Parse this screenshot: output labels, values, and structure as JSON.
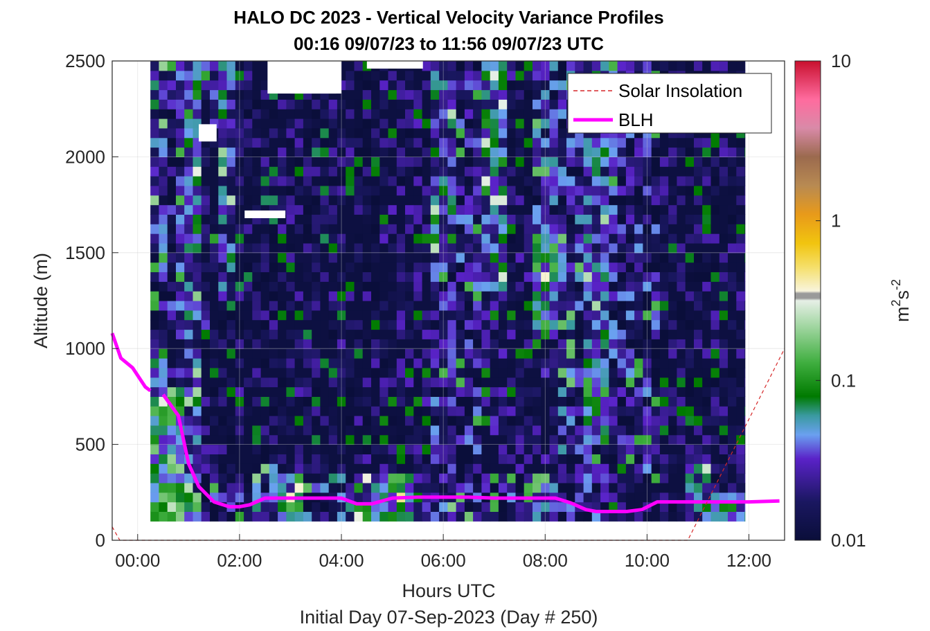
{
  "chart_data": {
    "type": "heatmap",
    "title": "HALO DC 2023 - Vertical Velocity Variance Profiles",
    "subtitle": "00:16 09/07/23 to 11:56 09/07/23  UTC",
    "xlabel": "Hours UTC",
    "xlabel2": "Initial Day 07-Sep-2023 (Day # 250)",
    "ylabel": "Altitude (m)",
    "xlim": [
      -0.5,
      12.7
    ],
    "ylim": [
      0,
      2500
    ],
    "x_ticks": [
      0,
      2,
      4,
      6,
      8,
      10,
      12
    ],
    "x_tick_labels": [
      "00:00",
      "02:00",
      "04:00",
      "06:00",
      "08:00",
      "10:00",
      "12:00"
    ],
    "y_ticks": [
      0,
      500,
      1000,
      1500,
      2000,
      2500
    ],
    "y_tick_labels": [
      "0",
      "500",
      "1000",
      "1500",
      "2000",
      "2500"
    ],
    "grid": true,
    "colorbar": {
      "scale": "log",
      "range": [
        0.01,
        10
      ],
      "ticks": [
        0.01,
        0.1,
        1,
        10
      ],
      "tick_labels": [
        "0.01",
        "0.1",
        "1",
        "10"
      ],
      "label_base": "m",
      "label_exp1": "2",
      "label_mid": "s",
      "label_exp2": "-2"
    },
    "legend": {
      "placement": "top-right",
      "entries": [
        {
          "label": "Solar Insolation",
          "color": "#d62728",
          "style": "dashed"
        },
        {
          "label": "BLH",
          "color": "#ff00ff",
          "style": "solid"
        }
      ]
    },
    "heatmap": {
      "x_start": 0.25,
      "x_end": 11.92,
      "dx": 0.1667,
      "y_start": 100,
      "y_end": 2500,
      "dy": 50,
      "columns": [
        {
          "t": 0.33,
          "top": 2500,
          "profile": [
            [
              100,
              250,
              0.1
            ],
            [
              250,
              700,
              0.08
            ],
            [
              700,
              1000,
              0.05
            ],
            [
              1000,
              1600,
              0.02
            ],
            [
              1600,
              2500,
              0.03
            ]
          ]
        },
        {
          "t": 0.67,
          "top": 2500,
          "profile": [
            [
              100,
              300,
              0.12
            ],
            [
              300,
              800,
              0.09
            ],
            [
              800,
              1200,
              0.015
            ],
            [
              1200,
              2500,
              0.02
            ]
          ]
        },
        {
          "t": 1.0,
          "top": 2500,
          "profile": [
            [
              100,
              250,
              0.09
            ],
            [
              250,
              900,
              0.035
            ],
            [
              900,
              1600,
              0.03
            ],
            [
              1600,
              2500,
              0.05
            ]
          ]
        },
        {
          "t": 1.33,
          "top": 2500,
          "profile": [
            [
              100,
              300,
              0.02
            ],
            [
              300,
              1100,
              0.012
            ],
            [
              1100,
              2500,
              0.018
            ]
          ]
        },
        {
          "t": 1.67,
          "top": 2500,
          "profile": [
            [
              100,
              300,
              0.02
            ],
            [
              300,
              1200,
              0.012
            ],
            [
              1200,
              2500,
              0.035
            ]
          ]
        },
        {
          "t": 2.0,
          "top": 2500,
          "profile": [
            [
              100,
              300,
              0.018
            ],
            [
              300,
              1100,
              0.013
            ],
            [
              1100,
              2500,
              0.011
            ]
          ]
        },
        {
          "t": 2.5,
          "top": 2500,
          "profile": [
            [
              100,
              400,
              0.03
            ],
            [
              400,
              2500,
              0.011
            ]
          ]
        },
        {
          "t": 3.0,
          "top": 2500,
          "profile": [
            [
              100,
              350,
              0.06
            ],
            [
              350,
              2500,
              0.012
            ]
          ]
        },
        {
          "t": 3.5,
          "top": 2500,
          "profile": [
            [
              100,
              300,
              0.025
            ],
            [
              300,
              2500,
              0.011
            ]
          ]
        },
        {
          "t": 4.0,
          "top": 2500,
          "profile": [
            [
              100,
              350,
              0.03
            ],
            [
              350,
              2500,
              0.012
            ]
          ]
        },
        {
          "t": 4.5,
          "top": 2500,
          "profile": [
            [
              100,
              350,
              0.05
            ],
            [
              350,
              2500,
              0.012
            ]
          ]
        },
        {
          "t": 5.0,
          "top": 2500,
          "profile": [
            [
              100,
              350,
              0.07
            ],
            [
              350,
              2500,
              0.013
            ]
          ]
        },
        {
          "t": 5.5,
          "top": 2500,
          "profile": [
            [
              100,
              350,
              0.04
            ],
            [
              350,
              2500,
              0.013
            ]
          ]
        },
        {
          "t": 6.0,
          "top": 2500,
          "profile": [
            [
              100,
              350,
              0.03
            ],
            [
              350,
              1500,
              0.02
            ],
            [
              1500,
              2500,
              0.04
            ]
          ]
        },
        {
          "t": 6.5,
          "top": 2500,
          "profile": [
            [
              100,
              350,
              0.025
            ],
            [
              350,
              2500,
              0.02
            ]
          ]
        },
        {
          "t": 7.0,
          "top": 2500,
          "profile": [
            [
              100,
              350,
              0.02
            ],
            [
              350,
              1300,
              0.014
            ],
            [
              1300,
              2500,
              0.045
            ]
          ]
        },
        {
          "t": 7.5,
          "top": 2500,
          "profile": [
            [
              100,
              350,
              0.02
            ],
            [
              350,
              2500,
              0.013
            ]
          ]
        },
        {
          "t": 8.0,
          "top": 2500,
          "profile": [
            [
              100,
              350,
              0.025
            ],
            [
              350,
              1100,
              0.015
            ],
            [
              1100,
              1600,
              0.06
            ],
            [
              1600,
              2500,
              0.025
            ]
          ]
        },
        {
          "t": 8.5,
          "top": 2500,
          "profile": [
            [
              100,
              350,
              0.02
            ],
            [
              350,
              2500,
              0.025
            ]
          ]
        },
        {
          "t": 9.0,
          "top": 2500,
          "profile": [
            [
              100,
              500,
              0.02
            ],
            [
              500,
              900,
              0.06
            ],
            [
              900,
              2500,
              0.035
            ]
          ]
        },
        {
          "t": 9.5,
          "top": 2500,
          "profile": [
            [
              100,
              400,
              0.013
            ],
            [
              400,
              2500,
              0.02
            ]
          ]
        },
        {
          "t": 10.0,
          "top": 2500,
          "profile": [
            [
              100,
              300,
              0.013
            ],
            [
              300,
              2500,
              0.02
            ]
          ]
        },
        {
          "t": 10.5,
          "top": 2500,
          "profile": [
            [
              100,
              300,
              0.012
            ],
            [
              300,
              2500,
              0.012
            ]
          ]
        },
        {
          "t": 11.0,
          "top": 2500,
          "profile": [
            [
              100,
              450,
              0.04
            ],
            [
              450,
              2500,
              0.012
            ]
          ]
        },
        {
          "t": 11.5,
          "top": 2500,
          "profile": [
            [
              100,
              250,
              0.06
            ],
            [
              250,
              2500,
              0.012
            ]
          ]
        }
      ]
    },
    "series": [
      {
        "name": "BLH",
        "x": [
          -0.5,
          -0.33,
          -0.1,
          0.15,
          0.25
        ],
        "y": [
          1080,
          950,
          900,
          800,
          780
        ]
      },
      {
        "name": "BLH",
        "x": [
          0.5,
          0.8,
          1.0,
          1.2,
          1.5,
          1.8,
          2.0,
          2.2,
          2.5,
          3.0,
          3.5,
          4.0,
          4.3,
          4.6,
          5.0,
          5.5,
          6.0,
          6.5,
          7.0,
          7.5,
          8.0,
          8.2,
          8.5,
          8.8,
          9.0,
          9.3,
          9.6,
          9.9,
          10.2,
          10.5,
          11.0,
          11.5,
          12.0,
          12.6
        ],
        "y": [
          760,
          650,
          400,
          280,
          200,
          175,
          175,
          185,
          220,
          220,
          220,
          220,
          190,
          190,
          220,
          225,
          225,
          225,
          220,
          220,
          220,
          220,
          195,
          160,
          150,
          150,
          150,
          160,
          200,
          200,
          200,
          200,
          200,
          205
        ]
      },
      {
        "name": "Solar Insolation",
        "x": [
          -0.5,
          -0.35,
          10.8,
          12.7
        ],
        "y": [
          70,
          0,
          0,
          1000
        ]
      }
    ],
    "annotations_missing_data": [
      {
        "x0": 2.1,
        "x1": 2.9,
        "y0": 1680,
        "y1": 1720
      },
      {
        "x0": 1.2,
        "x1": 1.55,
        "y0": 2080,
        "y1": 2170
      },
      {
        "x0": 2.55,
        "x1": 4.0,
        "y0": 2330,
        "y1": 2500
      },
      {
        "x0": 3.0,
        "x1": 3.9,
        "y0": 2330,
        "y1": 2500
      },
      {
        "x0": 4.5,
        "x1": 5.6,
        "y0": 2460,
        "y1": 2500
      }
    ]
  }
}
